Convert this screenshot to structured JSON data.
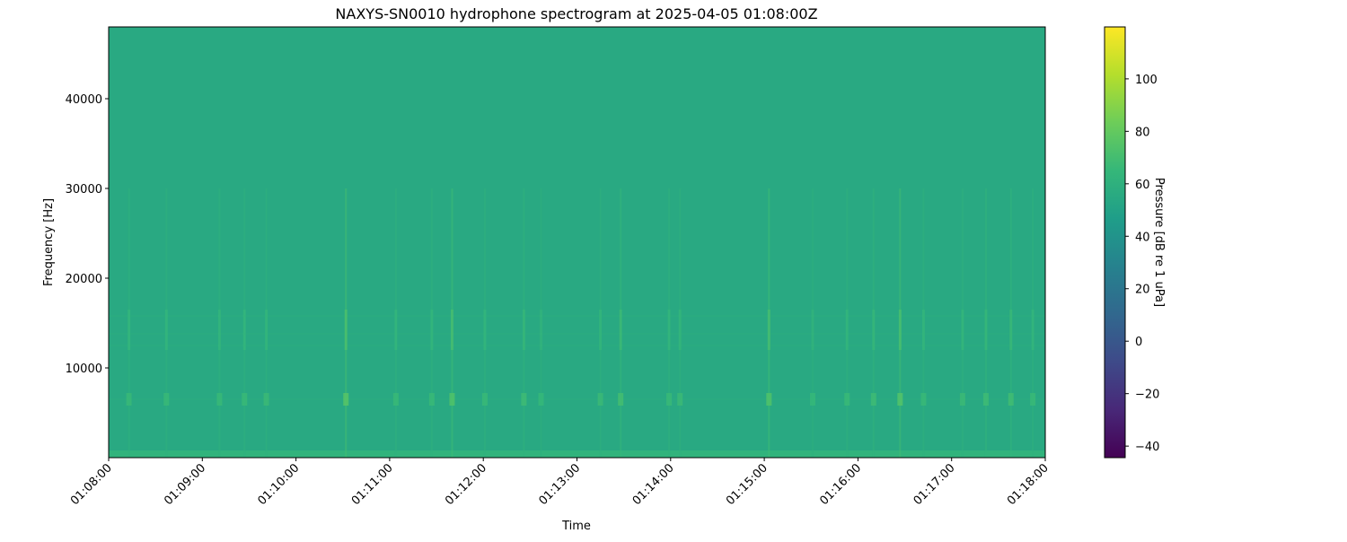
{
  "chart_data": {
    "type": "heatmap",
    "title": "NAXYS-SN0010 hydrophone spectrogram at 2025-04-05 01:08:00Z",
    "xlabel": "Time",
    "ylabel": "Frequency [Hz]",
    "colorbar_label": "Pressure [dB re 1 uPa]",
    "colormap": "viridis",
    "xlim": [
      "01:08:00",
      "01:18:00"
    ],
    "ylim": [
      0,
      48000
    ],
    "clim": [
      -44.4,
      119.8
    ],
    "x_ticks": [
      "01:08:00",
      "01:09:00",
      "01:10:00",
      "01:11:00",
      "01:12:00",
      "01:13:00",
      "01:14:00",
      "01:15:00",
      "01:16:00",
      "01:17:00",
      "01:18:00"
    ],
    "y_ticks": [
      10000,
      20000,
      30000,
      40000
    ],
    "colorbar_ticks": [
      -40,
      -20,
      0,
      20,
      40,
      60,
      80,
      100
    ],
    "background_level_db": 55,
    "low_frequency_band": {
      "freq_max": 800,
      "level_db": 62
    },
    "tonal_bands_hz": [
      6500,
      12500,
      13800,
      15800
    ],
    "events": [
      {
        "time": "01:08:13",
        "level_db": 66
      },
      {
        "time": "01:08:37",
        "level_db": 66
      },
      {
        "time": "01:09:11",
        "level_db": 66
      },
      {
        "time": "01:09:27",
        "level_db": 66
      },
      {
        "time": "01:09:41",
        "level_db": 67
      },
      {
        "time": "01:10:32",
        "level_db": 76
      },
      {
        "time": "01:11:04",
        "level_db": 66
      },
      {
        "time": "01:11:27",
        "level_db": 66
      },
      {
        "time": "01:11:40",
        "level_db": 74
      },
      {
        "time": "01:12:01",
        "level_db": 66
      },
      {
        "time": "01:12:26",
        "level_db": 68
      },
      {
        "time": "01:12:37",
        "level_db": 65
      },
      {
        "time": "01:13:15",
        "level_db": 67
      },
      {
        "time": "01:13:28",
        "level_db": 70
      },
      {
        "time": "01:13:59",
        "level_db": 66
      },
      {
        "time": "01:14:06",
        "level_db": 67
      },
      {
        "time": "01:15:03",
        "level_db": 74
      },
      {
        "time": "01:15:31",
        "level_db": 65
      },
      {
        "time": "01:15:53",
        "level_db": 66
      },
      {
        "time": "01:16:10",
        "level_db": 68
      },
      {
        "time": "01:16:27",
        "level_db": 75
      },
      {
        "time": "01:16:42",
        "level_db": 66
      },
      {
        "time": "01:17:07",
        "level_db": 67
      },
      {
        "time": "01:17:22",
        "level_db": 68
      },
      {
        "time": "01:17:38",
        "level_db": 69
      },
      {
        "time": "01:17:52",
        "level_db": 66
      }
    ]
  }
}
